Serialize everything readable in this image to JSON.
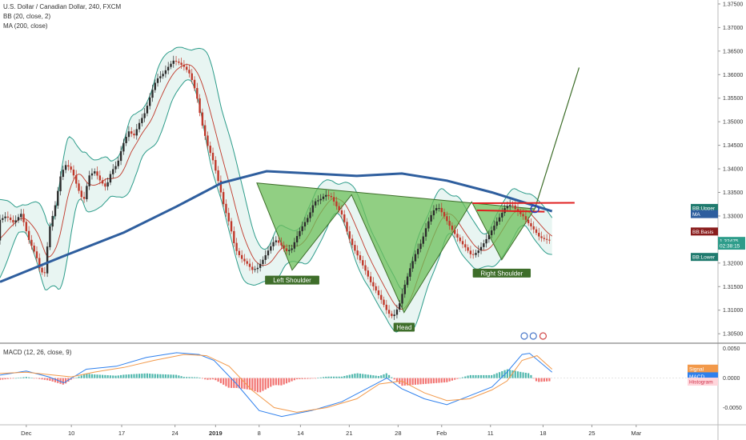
{
  "legend": {
    "title": "U.S. Dollar / Canadian Dollar, 240, FXCM",
    "bb": "BB (20, close, 2)",
    "ma": "MA (200, close)",
    "macd": "MACD (12, 26, close, 9)"
  },
  "colors": {
    "candle_up": "#2d2d2d",
    "candle_down": "#c0392b",
    "bb_line": "#2d9c8a",
    "bb_fill": "#e6f4f1",
    "bb_basis": "#c0392b",
    "ma_line": "#2e5e9e",
    "pattern_fill": "#6cbf5a",
    "pattern_stroke": "#3e6e2a",
    "label_bg": "#3e6e2a",
    "red_line": "#e02020",
    "macd_line": "#2f80ed",
    "signal_line": "#f2994a",
    "hist_up": "#26a69a",
    "hist_down": "#ef5350"
  },
  "chart_data": [
    {
      "type": "candlestick",
      "ylim": [
        1.3035,
        1.3755
      ],
      "y_ticks": [
        "1.37500",
        "1.37000",
        "1.36500",
        "1.36000",
        "1.35500",
        "1.35000",
        "1.34500",
        "1.34000",
        "1.33500",
        "1.33000",
        "1.32500",
        "1.32000",
        "1.31500",
        "1.31000",
        "1.30500"
      ],
      "x_ticks": [
        {
          "label": "Dec",
          "x": 0.0
        },
        {
          "label": "10",
          "x": 6.0
        },
        {
          "label": "17",
          "x": 12.7
        },
        {
          "label": "24",
          "x": 19.8
        },
        {
          "label": "2019",
          "x": 25.2,
          "bold": true
        },
        {
          "label": "8",
          "x": 31.0
        },
        {
          "label": "14",
          "x": 36.5
        },
        {
          "label": "21",
          "x": 43.0
        },
        {
          "label": "28",
          "x": 49.5
        },
        {
          "label": "Feb",
          "x": 55.3
        },
        {
          "label": "11",
          "x": 61.8
        },
        {
          "label": "18",
          "x": 68.8
        },
        {
          "label": "25",
          "x": 75.3
        },
        {
          "label": "Mar",
          "x": 81.2
        }
      ],
      "x_range": [
        -3.5,
        89.0
      ],
      "price_path": [
        [
          -3.5,
          1.329
        ],
        [
          -2.5,
          1.33
        ],
        [
          -1.5,
          1.3285
        ],
        [
          -0.5,
          1.3305
        ],
        [
          0.5,
          1.325
        ],
        [
          1.5,
          1.3215
        ],
        [
          2.0,
          1.3185
        ],
        [
          2.6,
          1.3175
        ],
        [
          3.2,
          1.327
        ],
        [
          4.0,
          1.332
        ],
        [
          4.8,
          1.339
        ],
        [
          5.5,
          1.341
        ],
        [
          6.3,
          1.3395
        ],
        [
          7.0,
          1.336
        ],
        [
          7.8,
          1.333
        ],
        [
          8.5,
          1.3385
        ],
        [
          9.3,
          1.3395
        ],
        [
          10.0,
          1.3375
        ],
        [
          10.8,
          1.336
        ],
        [
          11.5,
          1.3395
        ],
        [
          12.3,
          1.341
        ],
        [
          13.0,
          1.345
        ],
        [
          13.8,
          1.348
        ],
        [
          14.5,
          1.347
        ],
        [
          15.3,
          1.35
        ],
        [
          16.0,
          1.352
        ],
        [
          16.8,
          1.356
        ],
        [
          17.5,
          1.359
        ],
        [
          18.3,
          1.36
        ],
        [
          19.0,
          1.3615
        ],
        [
          19.8,
          1.363
        ],
        [
          20.5,
          1.3625
        ],
        [
          21.3,
          1.3615
        ],
        [
          22.0,
          1.36
        ],
        [
          22.8,
          1.356
        ],
        [
          23.5,
          1.35
        ],
        [
          24.3,
          1.345
        ],
        [
          25.0,
          1.342
        ],
        [
          25.8,
          1.337
        ],
        [
          26.5,
          1.332
        ],
        [
          27.3,
          1.328
        ],
        [
          28.0,
          1.323
        ],
        [
          28.8,
          1.321
        ],
        [
          29.5,
          1.32
        ],
        [
          30.3,
          1.3185
        ],
        [
          31.0,
          1.319
        ],
        [
          31.8,
          1.321
        ],
        [
          32.5,
          1.323
        ],
        [
          33.3,
          1.325
        ],
        [
          34.0,
          1.324
        ],
        [
          34.8,
          1.3225
        ],
        [
          35.5,
          1.323
        ],
        [
          36.3,
          1.326
        ],
        [
          37.0,
          1.328
        ],
        [
          37.8,
          1.33
        ],
        [
          38.5,
          1.333
        ],
        [
          39.3,
          1.3335
        ],
        [
          40.0,
          1.3345
        ],
        [
          40.8,
          1.334
        ],
        [
          41.5,
          1.332
        ],
        [
          42.3,
          1.33
        ],
        [
          43.0,
          1.326
        ],
        [
          43.8,
          1.323
        ],
        [
          44.5,
          1.321
        ],
        [
          45.3,
          1.3185
        ],
        [
          46.0,
          1.316
        ],
        [
          46.8,
          1.314
        ],
        [
          47.5,
          1.312
        ],
        [
          48.3,
          1.3095
        ],
        [
          49.0,
          1.3085
        ],
        [
          49.8,
          1.311
        ],
        [
          50.5,
          1.315
        ],
        [
          51.3,
          1.319
        ],
        [
          52.0,
          1.322
        ],
        [
          52.8,
          1.3245
        ],
        [
          53.5,
          1.328
        ],
        [
          54.3,
          1.331
        ],
        [
          55.0,
          1.332
        ],
        [
          55.8,
          1.33
        ],
        [
          56.5,
          1.328
        ],
        [
          57.3,
          1.326
        ],
        [
          58.0,
          1.3245
        ],
        [
          58.8,
          1.323
        ],
        [
          59.5,
          1.3215
        ],
        [
          60.3,
          1.3225
        ],
        [
          61.0,
          1.324
        ],
        [
          61.8,
          1.326
        ],
        [
          62.5,
          1.328
        ],
        [
          63.3,
          1.33
        ],
        [
          64.0,
          1.332
        ],
        [
          64.8,
          1.3325
        ],
        [
          65.5,
          1.331
        ],
        [
          66.3,
          1.33
        ],
        [
          67.0,
          1.3285
        ],
        [
          67.8,
          1.327
        ],
        [
          68.5,
          1.3255
        ],
        [
          69.3,
          1.325
        ],
        [
          70.0,
          1.3248
        ]
      ],
      "price_path_note_free": true,
      "ma200": [
        [
          -3.5,
          1.316
        ],
        [
          5,
          1.3215
        ],
        [
          13,
          1.3265
        ],
        [
          20,
          1.332
        ],
        [
          26,
          1.337
        ],
        [
          32,
          1.3395
        ],
        [
          38,
          1.339
        ],
        [
          44,
          1.3385
        ],
        [
          50,
          1.339
        ],
        [
          56,
          1.3375
        ],
        [
          62,
          1.335
        ],
        [
          67,
          1.3325
        ],
        [
          70,
          1.331
        ]
      ],
      "head_shoulders": {
        "polygon": [
          [
            30.7,
            1.337
          ],
          [
            35.4,
            1.3185
          ],
          [
            43.3,
            1.3345
          ],
          [
            50.3,
            1.3095
          ],
          [
            59.3,
            1.333
          ],
          [
            63.3,
            1.3207
          ],
          [
            67.7,
            1.3315
          ]
        ],
        "labels": [
          {
            "text": "Left Shoulder",
            "x": 35.4,
            "y": 1.3185
          },
          {
            "text": "Head",
            "x": 50.3,
            "y": 1.3085
          },
          {
            "text": "Right Shoulder",
            "x": 63.3,
            "y": 1.32
          }
        ],
        "neckline": [
          [
            30.7,
            1.337
          ],
          [
            67.7,
            1.3315
          ]
        ],
        "projection": [
          [
            67.7,
            1.3315
          ],
          [
            73.6,
            1.3615
          ]
        ]
      },
      "red_lines": [
        [
          [
            59.4,
            1.3327
          ],
          [
            73.0,
            1.3328
          ]
        ],
        [
          [
            60.0,
            1.3312
          ],
          [
            69.0,
            1.3309
          ]
        ]
      ],
      "price_badges": [
        {
          "text": "BB:Upper",
          "y": 1.3317,
          "color": "#1f7a6e"
        },
        {
          "text": "MA",
          "y": 1.3304,
          "color": "#2e5e9e"
        },
        {
          "text": "BB:Basis",
          "y": 1.3267,
          "color": "#8a1d1d"
        },
        {
          "text": "1.32475",
          "y": 1.3247,
          "color": "#2d9c8a"
        },
        {
          "text": "02:38:15",
          "y": 1.3237,
          "color": "#2d9c8a"
        },
        {
          "text": "BB:Lower",
          "y": 1.3213,
          "color": "#1f7a6e"
        }
      ]
    },
    {
      "type": "bar",
      "name_from_legend": "MACD (12, 26, close, 9)",
      "ylim": [
        -0.0075,
        0.0055
      ],
      "y_ticks": [
        "0.0050",
        "0.0000",
        "-0.0050"
      ],
      "macd_path": [
        [
          -3.5,
          0.0005
        ],
        [
          0,
          0.0012
        ],
        [
          3,
          0.0002
        ],
        [
          5,
          -0.0008
        ],
        [
          8,
          0.0015
        ],
        [
          12,
          0.002
        ],
        [
          16,
          0.0035
        ],
        [
          20,
          0.0043
        ],
        [
          23,
          0.004
        ],
        [
          25,
          0.003
        ],
        [
          28,
          -0.001
        ],
        [
          31,
          -0.0055
        ],
        [
          34,
          -0.0065
        ],
        [
          38,
          -0.0055
        ],
        [
          42,
          -0.004
        ],
        [
          45,
          -0.002
        ],
        [
          48,
          0.0
        ],
        [
          50,
          -0.0018
        ],
        [
          53,
          -0.0035
        ],
        [
          56,
          -0.0045
        ],
        [
          59,
          -0.003
        ],
        [
          62,
          -0.0015
        ],
        [
          64,
          0.001
        ],
        [
          66,
          0.004
        ],
        [
          67,
          0.0042
        ],
        [
          70,
          0.001
        ]
      ],
      "signal_path": [
        [
          -3.5,
          0.0008
        ],
        [
          0,
          0.001
        ],
        [
          3,
          0.0006
        ],
        [
          6,
          0.0002
        ],
        [
          9,
          0.001
        ],
        [
          13,
          0.0018
        ],
        [
          17,
          0.003
        ],
        [
          21,
          0.004
        ],
        [
          24,
          0.0038
        ],
        [
          27,
          0.002
        ],
        [
          30,
          -0.002
        ],
        [
          33,
          -0.005
        ],
        [
          36,
          -0.0058
        ],
        [
          40,
          -0.005
        ],
        [
          44,
          -0.0035
        ],
        [
          47,
          -0.001
        ],
        [
          50,
          -0.0005
        ],
        [
          53,
          -0.0025
        ],
        [
          56,
          -0.0038
        ],
        [
          59,
          -0.0035
        ],
        [
          62,
          -0.002
        ],
        [
          64,
          -0.0005
        ],
        [
          66,
          0.003
        ],
        [
          68,
          0.0038
        ],
        [
          70,
          0.0015
        ]
      ],
      "badges": [
        {
          "text": "Signal",
          "y": 0.0016,
          "color": "#f2994a"
        },
        {
          "text": "MACD",
          "y": 0.0003,
          "color": "#2f80ed"
        },
        {
          "text": "Histogram",
          "y": -0.0006,
          "color": "#ffd6dc"
        }
      ]
    }
  ]
}
